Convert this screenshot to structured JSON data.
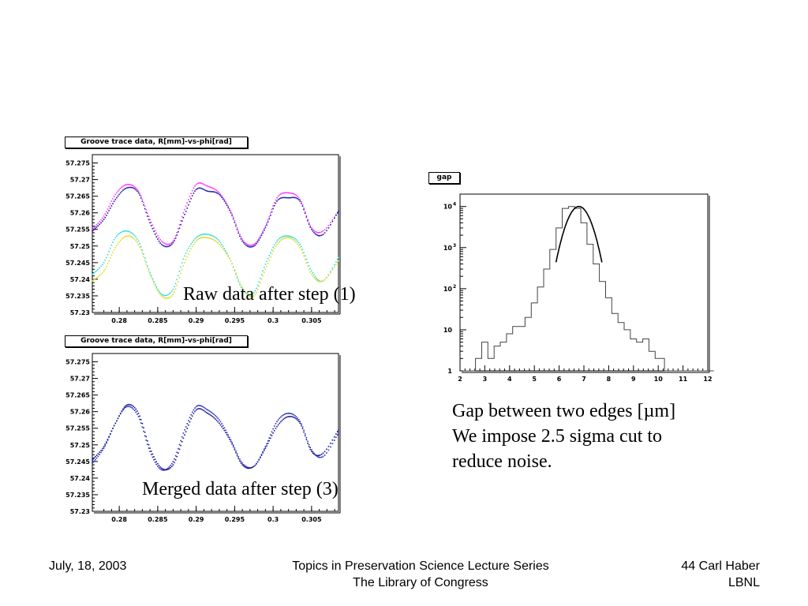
{
  "slide": {
    "caption_raw": "Raw data after step (1)",
    "caption_merged": "Merged data after step (3)",
    "gap_caption_lines": [
      "Gap between two edges [µm]",
      "We impose 2.5 sigma cut to",
      "reduce noise."
    ]
  },
  "footer": {
    "date": "July, 18, 2003",
    "center_line1": "Topics in Preservation Science Lecture Series",
    "center_line2": "The Library of Congress",
    "right_line1": "44 Carl Haber",
    "right_line2": "LBNL"
  },
  "chart_data": [
    {
      "type": "scatter",
      "title": "Groove trace data, R[mm]-vs-phi[rad]",
      "xlim": [
        0.2765,
        0.3085
      ],
      "ylim": [
        57.23,
        57.2775
      ],
      "xticks": [
        "0.28",
        "0.285",
        "0.29",
        "0.295",
        "0.3",
        "0.305"
      ],
      "xtick_values": [
        0.28,
        0.285,
        0.29,
        0.295,
        0.3,
        0.305
      ],
      "yticks": [
        "57.23",
        "57.235",
        "57.24",
        "57.245",
        "57.25",
        "57.255",
        "57.26",
        "57.265",
        "57.27",
        "57.275"
      ],
      "ytick_values": [
        57.23,
        57.235,
        57.24,
        57.245,
        57.25,
        57.255,
        57.26,
        57.265,
        57.27,
        57.275
      ],
      "series": [
        {
          "color": "#ff33ff",
          "x": [
            0.2765,
            0.278,
            0.2795,
            0.281,
            0.2825,
            0.284,
            0.2855,
            0.287,
            0.2885,
            0.29,
            0.2915,
            0.293,
            0.2945,
            0.296,
            0.2975,
            0.299,
            0.3005,
            0.302,
            0.3035,
            0.305,
            0.3065,
            0.3085
          ],
          "y": [
            57.255,
            57.259,
            57.2655,
            57.2685,
            57.2665,
            57.258,
            57.2515,
            57.2515,
            57.261,
            57.2685,
            57.268,
            57.266,
            57.2605,
            57.252,
            57.2505,
            57.256,
            57.2645,
            57.266,
            57.264,
            57.2555,
            57.2545,
            57.2605
          ]
        },
        {
          "color": "#1a1aa8",
          "x": [
            0.2765,
            0.278,
            0.2795,
            0.281,
            0.2825,
            0.284,
            0.2855,
            0.287,
            0.2885,
            0.29,
            0.2915,
            0.293,
            0.2945,
            0.296,
            0.2975,
            0.299,
            0.3005,
            0.302,
            0.3035,
            0.305,
            0.3065,
            0.3085
          ],
          "y": [
            57.2545,
            57.258,
            57.264,
            57.2675,
            57.266,
            57.257,
            57.2505,
            57.251,
            57.2595,
            57.267,
            57.2665,
            57.2655,
            57.26,
            57.2515,
            57.25,
            57.2555,
            57.2635,
            57.2645,
            57.2635,
            57.255,
            57.2535,
            57.2605
          ]
        },
        {
          "color": "#33dddd",
          "x": [
            0.2765,
            0.278,
            0.2795,
            0.281,
            0.2825,
            0.284,
            0.2855,
            0.287,
            0.2885,
            0.29,
            0.2915,
            0.293,
            0.2945,
            0.296,
            0.2975,
            0.299,
            0.3005,
            0.302,
            0.3035,
            0.305,
            0.3065,
            0.3085
          ],
          "y": [
            57.2415,
            57.245,
            57.2525,
            57.2545,
            57.2515,
            57.242,
            57.2355,
            57.237,
            57.247,
            57.2525,
            57.2535,
            57.2515,
            57.2455,
            57.237,
            57.236,
            57.2445,
            57.2515,
            57.253,
            57.2505,
            57.2425,
            57.2395,
            57.2465
          ]
        },
        {
          "color": "#dddd22",
          "x": [
            0.2765,
            0.278,
            0.2795,
            0.281,
            0.2825,
            0.284,
            0.2855,
            0.287,
            0.2885,
            0.29,
            0.2915,
            0.293,
            0.2945,
            0.296,
            0.2975,
            0.299,
            0.3005,
            0.302,
            0.3035,
            0.305,
            0.3065,
            0.3085
          ],
          "y": [
            57.2395,
            57.2425,
            57.2495,
            57.253,
            57.2505,
            57.2415,
            57.235,
            57.2355,
            57.245,
            57.2515,
            57.2525,
            57.2505,
            57.2455,
            57.2375,
            57.235,
            57.243,
            57.2505,
            57.2525,
            57.2495,
            57.2415,
            57.2395,
            57.2455
          ]
        }
      ]
    },
    {
      "type": "scatter",
      "title": "Groove trace data, R[mm]-vs-phi[rad]",
      "xlim": [
        0.2765,
        0.3085
      ],
      "ylim": [
        57.23,
        57.2775
      ],
      "xticks": [
        "0.28",
        "0.285",
        "0.29",
        "0.295",
        "0.3",
        "0.305"
      ],
      "xtick_values": [
        0.28,
        0.285,
        0.29,
        0.295,
        0.3,
        0.305
      ],
      "yticks": [
        "57.23",
        "57.235",
        "57.24",
        "57.245",
        "57.25",
        "57.255",
        "57.26",
        "57.265",
        "57.27",
        "57.275"
      ],
      "ytick_values": [
        57.23,
        57.235,
        57.24,
        57.245,
        57.25,
        57.255,
        57.26,
        57.265,
        57.27,
        57.275
      ],
      "series": [
        {
          "color": "#2a2acc",
          "x": [
            0.2765,
            0.278,
            0.2795,
            0.281,
            0.2825,
            0.284,
            0.2855,
            0.287,
            0.2885,
            0.29,
            0.2915,
            0.293,
            0.2945,
            0.296,
            0.2975,
            0.299,
            0.3005,
            0.302,
            0.3035,
            0.305,
            0.3065,
            0.3085
          ],
          "y": [
            57.2445,
            57.249,
            57.2565,
            57.2615,
            57.2585,
            57.248,
            57.2425,
            57.245,
            57.2545,
            57.2615,
            57.2605,
            57.2575,
            57.2515,
            57.2445,
            57.2435,
            57.2495,
            57.257,
            57.2595,
            57.257,
            57.2485,
            57.2465,
            57.2535
          ]
        },
        {
          "color": "#1a1a88",
          "x": [
            0.2765,
            0.278,
            0.2795,
            0.281,
            0.2825,
            0.284,
            0.2855,
            0.287,
            0.2885,
            0.29,
            0.2915,
            0.293,
            0.2945,
            0.296,
            0.2975,
            0.299,
            0.3005,
            0.302,
            0.3035,
            0.305,
            0.3065,
            0.3085
          ],
          "y": [
            57.2455,
            57.2495,
            57.2565,
            57.262,
            57.2595,
            57.249,
            57.243,
            57.244,
            57.253,
            57.2605,
            57.2595,
            57.2565,
            57.251,
            57.244,
            57.2435,
            57.249,
            57.2555,
            57.2585,
            57.2565,
            57.248,
            57.2475,
            57.2545
          ]
        }
      ]
    },
    {
      "type": "histogram",
      "title": "gap",
      "x": [
        2.25,
        2.5,
        2.75,
        3,
        3.25,
        3.5,
        3.75,
        4,
        4.25,
        4.5,
        4.75,
        5,
        5.25,
        5.5,
        5.75,
        6,
        6.25,
        6.5,
        6.75,
        7,
        7.25,
        7.5,
        7.75,
        8,
        8.25,
        8.5,
        8.75,
        9,
        9.25,
        9.5,
        9.75,
        10,
        10.5,
        11,
        11.5,
        12
      ],
      "values": [
        1,
        1,
        2,
        5,
        2,
        4,
        5,
        8,
        12,
        12,
        20,
        45,
        110,
        300,
        900,
        3000,
        9000,
        10000,
        9000,
        4000,
        1200,
        400,
        150,
        60,
        25,
        15,
        10,
        6,
        5,
        6,
        3,
        2,
        1,
        1,
        1,
        1
      ],
      "fit": {
        "type": "gaussian",
        "peak": 10000,
        "mean": 6.8,
        "sigma": 0.37
      },
      "xlim": [
        2,
        12
      ],
      "ylim": [
        1,
        20000
      ],
      "ylog": true,
      "xticks": [
        "2",
        "3",
        "4",
        "5",
        "6",
        "7",
        "8",
        "9",
        "10",
        "11",
        "12"
      ],
      "xtick_values": [
        2,
        3,
        4,
        5,
        6,
        7,
        8,
        9,
        10,
        11,
        12
      ],
      "yticks": [
        "1",
        "10",
        "10",
        "10",
        "10"
      ],
      "ytick_values": [
        1,
        10,
        100,
        1000,
        10000
      ],
      "ytick_exponents": [
        "",
        "",
        "2",
        "3",
        "4"
      ]
    }
  ]
}
